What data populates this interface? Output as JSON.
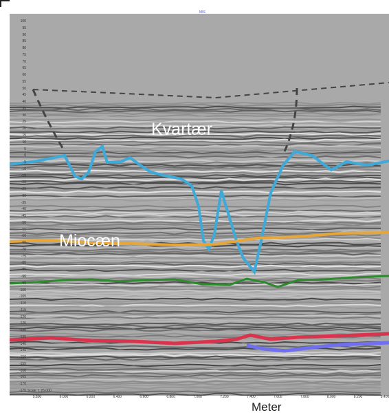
{
  "header": "MIS",
  "labels": {
    "kvartaer": "Kvartær",
    "miocaen": "Miocæn"
  },
  "x_axis": {
    "label": "Meter",
    "ticks": [
      "5.800",
      "6.000",
      "6.200",
      "6.400",
      "6.600",
      "6.800",
      "7.000",
      "7.200",
      "7.400",
      "7.600",
      "7.800",
      "8.000",
      "8.200",
      "8.400"
    ]
  },
  "y_axis": {
    "ticks": [
      "100",
      "95",
      "90",
      "85",
      "80",
      "75",
      "70",
      "65",
      "60",
      "55",
      "50",
      "45",
      "40",
      "35",
      "30",
      "25",
      "20",
      "15",
      "10",
      "5",
      "0",
      "-5",
      "-10",
      "-15",
      "-20",
      "-25",
      "-30",
      "-35",
      "-40",
      "-45",
      "-50",
      "-55",
      "-60",
      "-65",
      "-70",
      "-75",
      "-80",
      "-85",
      "-90",
      "-95",
      "-100",
      "-105",
      "-110",
      "-115",
      "-120",
      "-125",
      "-130",
      "-135",
      "-140",
      "-145",
      "-150",
      "-155",
      "-160",
      "-165",
      "-170",
      "-175"
    ]
  },
  "scale_info": "Scale: 1:25,000",
  "colors": {
    "kvartaer_line": "#3fa9d8",
    "miocaen_line": "#e6a63a",
    "green_line": "#2d8a2d",
    "red_line": "#d9344e",
    "purple_line": "#6f6ff0",
    "dashed": "#444444"
  }
}
